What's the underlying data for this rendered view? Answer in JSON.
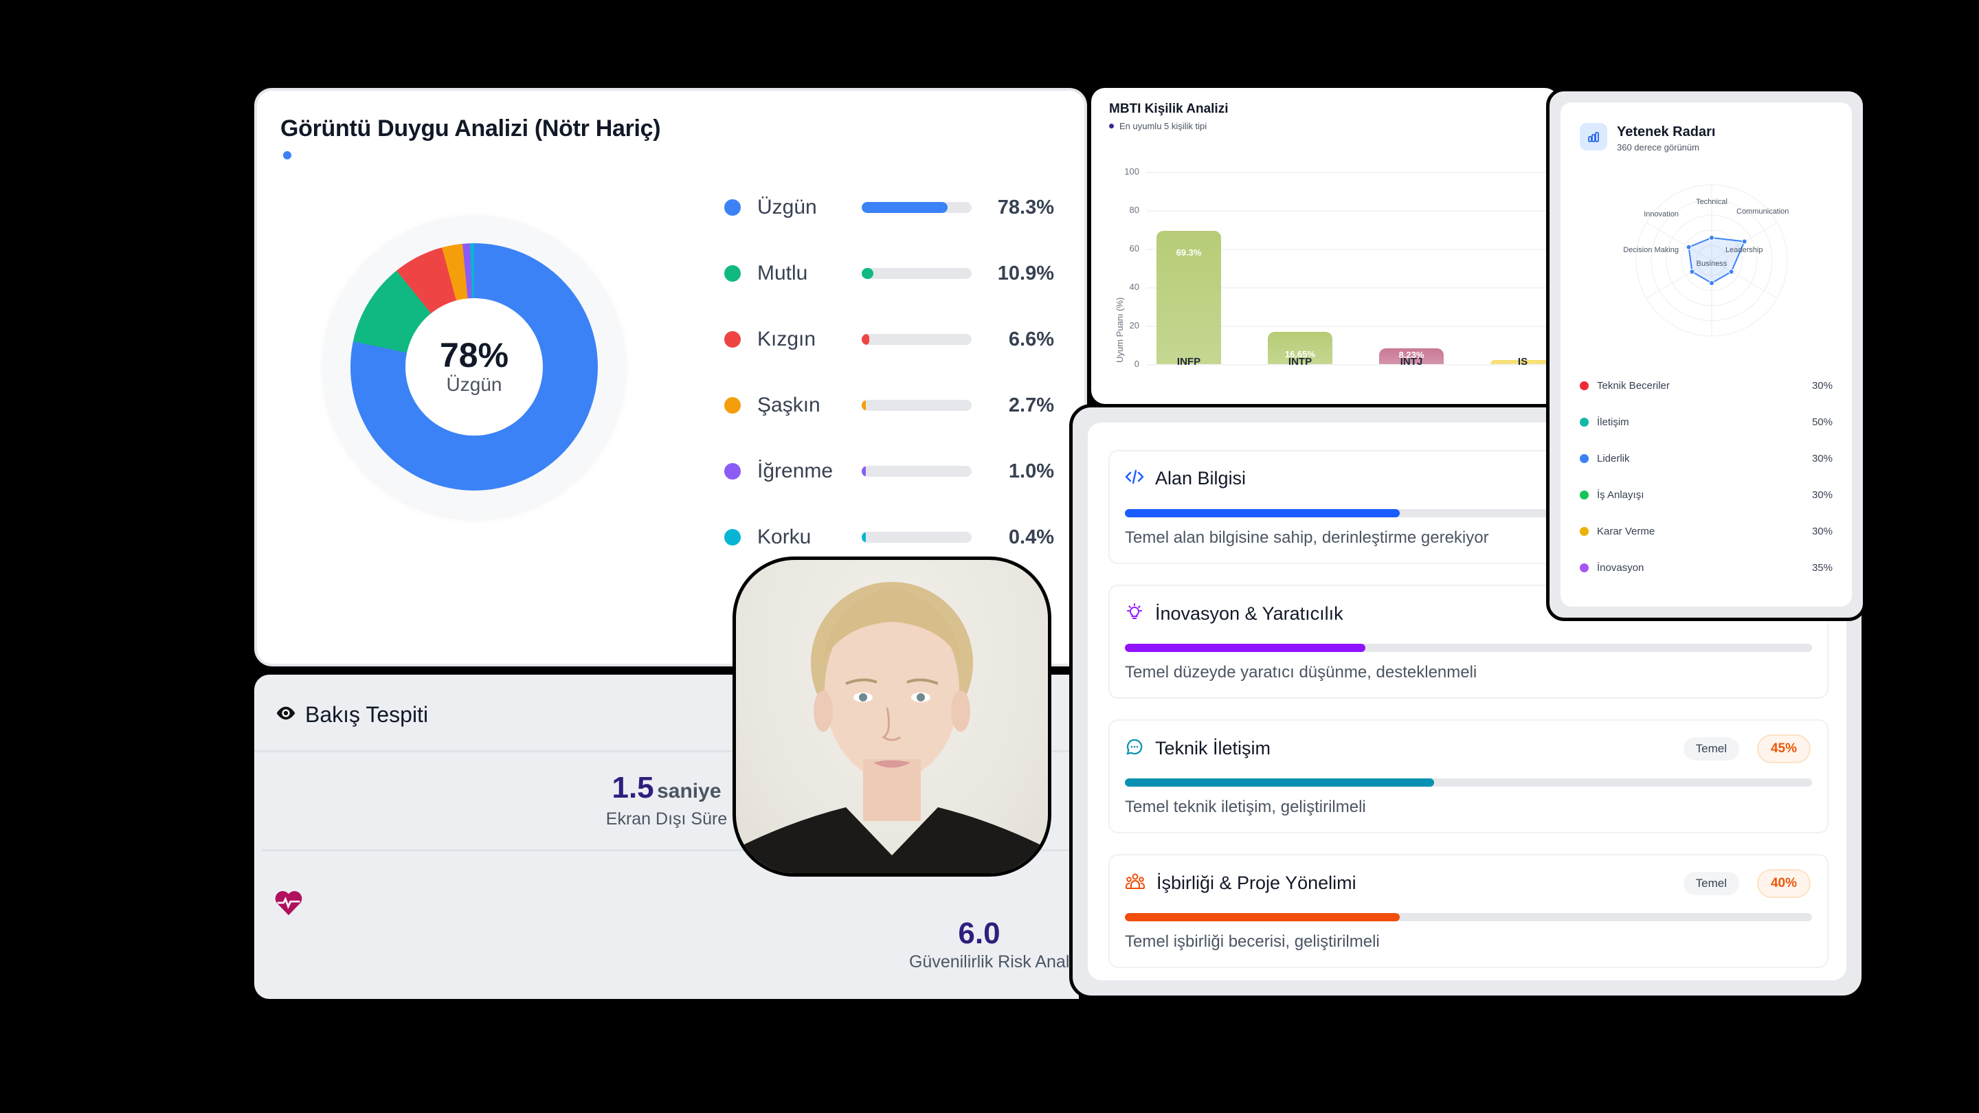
{
  "emotion": {
    "title": "Görüntü Duygu Analizi (Nötr Hariç)",
    "center_value": "78%",
    "center_label": "Üzgün",
    "items": [
      {
        "label": "Üzgün",
        "value": "78.3%",
        "pct": 78.3,
        "color": "#3b82f6"
      },
      {
        "label": "Mutlu",
        "value": "10.9%",
        "pct": 10.9,
        "color": "#10b981"
      },
      {
        "label": "Kızgın",
        "value": "6.6%",
        "pct": 6.6,
        "color": "#ef4444"
      },
      {
        "label": "Şaşkın",
        "value": "2.7%",
        "pct": 2.7,
        "color": "#f59e0b"
      },
      {
        "label": "İğrenme",
        "value": "1.0%",
        "pct": 1.0,
        "color": "#8b5cf6"
      },
      {
        "label": "Korku",
        "value": "0.4%",
        "pct": 0.4,
        "color": "#06b6d4"
      }
    ]
  },
  "gaze": {
    "title": "Bakış Tespiti",
    "offscreen_value": "1.5",
    "offscreen_unit": "saniye",
    "offscreen_label": "Ekran Dışı Süre",
    "risk_value": "6.0",
    "risk_label": "Güvenilirlik Risk Analizi"
  },
  "mbti": {
    "title": "MBTI Kişilik Analizi",
    "subtitle": "En uyumlu 5 kişilik tipi",
    "ylabel": "Uyum Puanı (%)",
    "yticks": [
      "100",
      "80",
      "60",
      "40",
      "20",
      "0"
    ]
  },
  "skills": [
    {
      "name": "Alan Bilgisi",
      "icon": "code-icon",
      "color": "#1a5cff",
      "pct": 40,
      "desc": "Temel alan bilgisine sahip, derinleştirme gerekiyor",
      "level": "",
      "score": ""
    },
    {
      "name": "İnovasyon & Yaratıcılık",
      "icon": "lightbulb-icon",
      "color": "#9013fe",
      "pct": 35,
      "desc": "Temel düzeyde yaratıcı düşünme, desteklenmeli",
      "level": "",
      "score": ""
    },
    {
      "name": "Teknik İletişim",
      "icon": "chat-bubble-icon",
      "color": "#0891b2",
      "pct": 45,
      "desc": "Temel teknik iletişim, geliştirilmeli",
      "level": "Temel",
      "score": "45%"
    },
    {
      "name": "İşbirliği & Proje Yönelimi",
      "icon": "team-icon",
      "color": "#f04e0a",
      "pct": 40,
      "desc": "Temel işbirliği becerisi, geliştirilmeli",
      "level": "Temel",
      "score": "40%"
    }
  ],
  "radar": {
    "title": "Yetenek Radarı",
    "subtitle": "360 derece görünüm",
    "axes": [
      "Technical",
      "Communication",
      "Leadership",
      "Business",
      "Decision Making",
      "Innovation"
    ],
    "legend": [
      {
        "label": "Teknik Beceriler",
        "value": "30%",
        "color": "#ef2b3a"
      },
      {
        "label": "İletişim",
        "value": "50%",
        "color": "#14b8a6"
      },
      {
        "label": "Liderlik",
        "value": "30%",
        "color": "#3b82f6"
      },
      {
        "label": "İş Anlayışı",
        "value": "30%",
        "color": "#16c45a"
      },
      {
        "label": "Karar Verme",
        "value": "30%",
        "color": "#eab308"
      },
      {
        "label": "İnovasyon",
        "value": "35%",
        "color": "#a855f7"
      }
    ]
  },
  "chart_data": [
    {
      "type": "pie",
      "title": "Görüntü Duygu Analizi (Nötr Hariç)",
      "categories": [
        "Üzgün",
        "Mutlu",
        "Kızgın",
        "Şaşkın",
        "İğrenme",
        "Korku"
      ],
      "values": [
        78.3,
        10.9,
        6.6,
        2.7,
        1.0,
        0.4
      ],
      "center_label": "78% Üzgün",
      "legend_position": "right"
    },
    {
      "type": "bar",
      "title": "MBTI Kişilik Analizi",
      "subtitle": "En uyumlu 5 kişilik tipi",
      "categories": [
        "INFP",
        "INTP",
        "INTJ",
        "IS…"
      ],
      "values": [
        69.3,
        16.65,
        8.23,
        2
      ],
      "data_labels": [
        "69.3%",
        "16.65%",
        "8.23%",
        ""
      ],
      "colors": [
        "#b7cc76",
        "#b7cc76",
        "#c97896",
        "#f5dd6a"
      ],
      "xlabel": "",
      "ylabel": "Uyum Puanı (%)",
      "ylim": [
        0,
        100
      ],
      "yticks": [
        0,
        20,
        40,
        60,
        80,
        100
      ],
      "grid": true
    },
    {
      "type": "radar",
      "title": "Yetenek Radarı",
      "subtitle": "360 derece görünüm",
      "categories": [
        "Technical",
        "Communication",
        "Leadership",
        "Business",
        "Decision Making",
        "Innovation"
      ],
      "values": [
        30,
        50,
        30,
        30,
        30,
        35
      ],
      "rmax": 100
    }
  ]
}
